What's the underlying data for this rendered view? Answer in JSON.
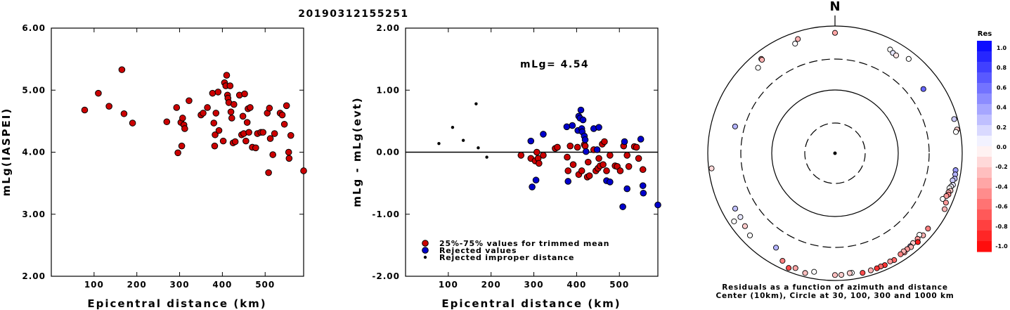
{
  "title": "20190312155251",
  "chart_data": [
    {
      "type": "scatter",
      "xlabel": "Epicentral distance (km)",
      "ylabel": "mLg(IASPEI)",
      "xlim": [
        0,
        590
      ],
      "ylim": [
        2.0,
        6.0
      ],
      "x_ticks": [
        "100",
        "200",
        "300",
        "400",
        "500"
      ],
      "y_ticks": [
        "2.00",
        "3.00",
        "4.00",
        "5.00",
        "6.00"
      ],
      "points": [
        [
          78,
          4.68
        ],
        [
          110,
          4.95
        ],
        [
          135,
          4.74
        ],
        [
          165,
          5.33
        ],
        [
          170,
          4.62
        ],
        [
          190,
          4.47
        ],
        [
          270,
          4.49
        ],
        [
          293,
          4.72
        ],
        [
          296,
          3.99
        ],
        [
          303,
          4.48
        ],
        [
          305,
          4.1
        ],
        [
          307,
          4.55
        ],
        [
          310,
          4.44
        ],
        [
          312,
          4.38
        ],
        [
          322,
          4.83
        ],
        [
          350,
          4.6
        ],
        [
          355,
          4.63
        ],
        [
          365,
          4.72
        ],
        [
          377,
          4.95
        ],
        [
          380,
          4.47
        ],
        [
          382,
          4.1
        ],
        [
          383,
          4.28
        ],
        [
          385,
          4.63
        ],
        [
          390,
          4.97
        ],
        [
          392,
          4.35
        ],
        [
          402,
          4.18
        ],
        [
          405,
          5.12
        ],
        [
          408,
          5.07
        ],
        [
          410,
          5.24
        ],
        [
          412,
          4.92
        ],
        [
          413,
          4.87
        ],
        [
          415,
          4.8
        ],
        [
          418,
          5.07
        ],
        [
          420,
          4.65
        ],
        [
          422,
          4.55
        ],
        [
          425,
          4.15
        ],
        [
          427,
          4.77
        ],
        [
          430,
          4.17
        ],
        [
          440,
          4.92
        ],
        [
          445,
          4.28
        ],
        [
          448,
          4.58
        ],
        [
          450,
          4.3
        ],
        [
          452,
          4.94
        ],
        [
          455,
          4.18
        ],
        [
          458,
          4.48
        ],
        [
          460,
          4.7
        ],
        [
          462,
          4.32
        ],
        [
          465,
          4.72
        ],
        [
          470,
          4.08
        ],
        [
          478,
          4.07
        ],
        [
          482,
          4.3
        ],
        [
          490,
          4.32
        ],
        [
          495,
          4.32
        ],
        [
          505,
          4.63
        ],
        [
          508,
          3.67
        ],
        [
          510,
          4.71
        ],
        [
          512,
          4.22
        ],
        [
          518,
          3.96
        ],
        [
          522,
          4.3
        ],
        [
          535,
          4.63
        ],
        [
          540,
          4.6
        ],
        [
          545,
          4.45
        ],
        [
          550,
          4.75
        ],
        [
          555,
          4.0
        ],
        [
          556,
          3.9
        ],
        [
          560,
          4.27
        ],
        [
          592,
          3.7
        ]
      ]
    },
    {
      "type": "scatter",
      "xlabel": "Epicentral distance (km)",
      "ylabel": "mLg - mLg(evt)",
      "xlim": [
        0,
        590
      ],
      "ylim": [
        -2.0,
        2.0
      ],
      "x_ticks": [
        "100",
        "200",
        "300",
        "400",
        "500"
      ],
      "y_ticks": [
        "-2.00",
        "-1.00",
        "0.00",
        "1.00",
        "2.00"
      ],
      "annotation": "mLg= 4.54",
      "reference_line": 0.0,
      "legend": [
        {
          "label": "25%-75% values for trimmed mean",
          "color": "#cc0000"
        },
        {
          "label": "Rejected values",
          "color": "#0000cc"
        },
        {
          "label": "Rejected improper distance",
          "color": "#000000"
        }
      ],
      "series": [
        {
          "name": "25%-75% values for trimmed mean",
          "color": "#cc0000",
          "points": [
            [
              270,
              -0.05
            ],
            [
              293,
              -0.1
            ],
            [
              303,
              -0.14
            ],
            [
              307,
              0.0
            ],
            [
              310,
              -0.1
            ],
            [
              312,
              -0.18
            ],
            [
              322,
              -0.05
            ],
            [
              350,
              0.06
            ],
            [
              355,
              0.08
            ],
            [
              378,
              -0.08
            ],
            [
              380,
              -0.3
            ],
            [
              385,
              0.1
            ],
            [
              392,
              -0.2
            ],
            [
              402,
              0.08
            ],
            [
              405,
              -0.36
            ],
            [
              412,
              -0.3
            ],
            [
              418,
              0.12
            ],
            [
              420,
              0.1
            ],
            [
              425,
              -0.4
            ],
            [
              427,
              -0.16
            ],
            [
              430,
              -0.38
            ],
            [
              440,
              0.04
            ],
            [
              445,
              -0.3
            ],
            [
              450,
              -0.26
            ],
            [
              452,
              -0.1
            ],
            [
              455,
              -0.22
            ],
            [
              460,
              0.13
            ],
            [
              462,
              -0.2
            ],
            [
              465,
              0.17
            ],
            [
              470,
              -0.3
            ],
            [
              478,
              -0.05
            ],
            [
              490,
              -0.22
            ],
            [
              495,
              -0.23
            ],
            [
              502,
              -0.3
            ],
            [
              510,
              0.1
            ],
            [
              518,
              -0.05
            ],
            [
              522,
              -0.23
            ],
            [
              535,
              0.09
            ],
            [
              540,
              0.08
            ],
            [
              545,
              -0.1
            ],
            [
              555,
              -0.28
            ]
          ]
        },
        {
          "name": "Rejected values",
          "color": "#0000cc",
          "points": [
            [
              293,
              0.18
            ],
            [
              296,
              -0.56
            ],
            [
              305,
              -0.45
            ],
            [
              322,
              0.29
            ],
            [
              377,
              0.41
            ],
            [
              380,
              -0.47
            ],
            [
              390,
              0.43
            ],
            [
              403,
              0.35
            ],
            [
              405,
              0.58
            ],
            [
              408,
              0.55
            ],
            [
              410,
              0.68
            ],
            [
              412,
              0.38
            ],
            [
              413,
              0.33
            ],
            [
              415,
              0.52
            ],
            [
              418,
              0.26
            ],
            [
              420,
              0.2
            ],
            [
              422,
              0.01
            ],
            [
              440,
              0.38
            ],
            [
              448,
              0.04
            ],
            [
              452,
              0.4
            ],
            [
              470,
              -0.46
            ],
            [
              478,
              -0.48
            ],
            [
              508,
              -0.88
            ],
            [
              512,
              0.17
            ],
            [
              518,
              -0.59
            ],
            [
              550,
              0.21
            ],
            [
              555,
              -0.54
            ],
            [
              556,
              -0.66
            ],
            [
              592,
              -0.85
            ]
          ]
        },
        {
          "name": "Rejected improper distance",
          "color": "#000000",
          "points": [
            [
              78,
              0.14
            ],
            [
              110,
              0.4
            ],
            [
              135,
              0.19
            ],
            [
              165,
              0.78
            ],
            [
              170,
              0.07
            ],
            [
              190,
              -0.08
            ]
          ]
        }
      ]
    },
    {
      "type": "scatter",
      "subtype": "polar",
      "north_label": "N",
      "caption_line1": "Residuals as a function of azimuth and distance",
      "caption_line2": "Center (10km), Circle at 30, 100, 300 and 1000 km",
      "colorbar": {
        "label": "Res",
        "range": [
          -1.0,
          1.0
        ],
        "tick_labels": [
          "1.0",
          "0.8",
          "0.6",
          "0.4",
          "0.2",
          "0.0",
          "-0.2",
          "-0.4",
          "-0.6",
          "-0.8",
          "-1.0"
        ]
      },
      "points": [
        {
          "azimuth": 0,
          "distance_km": 780,
          "residual": -0.35
        },
        {
          "azimuth": -18,
          "distance_km": 770,
          "residual": -0.3
        },
        {
          "azimuth": -20,
          "distance_km": 680,
          "residual": 0.02
        },
        {
          "azimuth": -38,
          "distance_km": 760,
          "residual": -0.35
        },
        {
          "azimuth": -38,
          "distance_km": 730,
          "residual": -0.3
        },
        {
          "azimuth": -42,
          "distance_km": 640,
          "residual": 0.0
        },
        {
          "azimuth": -75,
          "distance_km": 420,
          "residual": 0.3
        },
        {
          "azimuth": -97,
          "distance_km": 900,
          "residual": -0.15
        },
        {
          "azimuth": -119,
          "distance_km": 620,
          "residual": 0.25
        },
        {
          "azimuth": -124,
          "distance_km": 820,
          "residual": 0.0
        },
        {
          "azimuth": -124,
          "distance_km": 620,
          "residual": 0.1
        },
        {
          "azimuth": -129,
          "distance_km": 660,
          "residual": -0.2
        },
        {
          "azimuth": -134,
          "distance_km": 720,
          "residual": 0.0
        },
        {
          "azimuth": -148,
          "distance_km": 560,
          "residual": 0.3
        },
        {
          "azimuth": -154,
          "distance_km": 760,
          "residual": -0.5
        },
        {
          "azimuth": -158,
          "distance_km": 880,
          "residual": -0.7
        },
        {
          "azimuth": -161,
          "distance_km": 810,
          "residual": -0.35
        },
        {
          "azimuth": -166,
          "distance_km": 870,
          "residual": -0.25
        },
        {
          "azimuth": -170,
          "distance_km": 780,
          "residual": 0.0
        },
        {
          "azimuth": -180,
          "distance_km": 820,
          "residual": -0.25
        },
        {
          "azimuth": 28,
          "distance_km": 700,
          "residual": 0.0
        },
        {
          "azimuth": 30,
          "distance_km": 660,
          "residual": 0.1
        },
        {
          "azimuth": 32,
          "distance_km": 650,
          "residual": -0.1
        },
        {
          "azimuth": 38,
          "distance_km": 760,
          "residual": 0.0
        },
        {
          "azimuth": 54,
          "distance_km": 520,
          "residual": 0.6
        },
        {
          "azimuth": 74,
          "distance_km": 890,
          "residual": 0.2
        },
        {
          "azimuth": 79,
          "distance_km": 900,
          "residual": -0.2
        },
        {
          "azimuth": 80,
          "distance_km": 850,
          "residual": 0.0
        },
        {
          "azimuth": 98,
          "distance_km": 820,
          "residual": 0.4
        },
        {
          "azimuth": 100,
          "distance_km": 830,
          "residual": 0.3
        },
        {
          "azimuth": 102,
          "distance_km": 840,
          "residual": 0.25
        },
        {
          "azimuth": 103,
          "distance_km": 790,
          "residual": 0.2
        },
        {
          "azimuth": 105,
          "distance_km": 830,
          "residual": 0.1
        },
        {
          "azimuth": 106,
          "distance_km": 790,
          "residual": 0.05
        },
        {
          "azimuth": 107,
          "distance_km": 760,
          "residual": 0.0
        },
        {
          "azimuth": 108,
          "distance_km": 810,
          "residual": -0.2
        },
        {
          "azimuth": 109,
          "distance_km": 770,
          "residual": -0.3
        },
        {
          "azimuth": 110,
          "distance_km": 790,
          "residual": -0.5
        },
        {
          "azimuth": 111,
          "distance_km": 750,
          "residual": -0.4
        },
        {
          "azimuth": 113,
          "distance_km": 690,
          "residual": 0.0
        },
        {
          "azimuth": 114,
          "distance_km": 810,
          "residual": -0.4
        },
        {
          "azimuth": 117,
          "distance_km": 860,
          "residual": -0.3
        },
        {
          "azimuth": 129,
          "distance_km": 760,
          "residual": -0.5
        },
        {
          "azimuth": 133,
          "distance_km": 780,
          "residual": -0.3
        },
        {
          "azimuth": 134,
          "distance_km": 700,
          "residual": 0.0
        },
        {
          "azimuth": 136,
          "distance_km": 740,
          "residual": -0.4
        },
        {
          "azimuth": 137,
          "distance_km": 810,
          "residual": -0.9
        },
        {
          "azimuth": 139,
          "distance_km": 740,
          "residual": -0.2
        },
        {
          "azimuth": 141,
          "distance_km": 760,
          "residual": 0.3
        },
        {
          "azimuth": 141,
          "distance_km": 790,
          "residual": -0.3
        },
        {
          "azimuth": 143,
          "distance_km": 770,
          "residual": -0.4
        },
        {
          "azimuth": 145,
          "distance_km": 800,
          "residual": -0.4
        },
        {
          "azimuth": 145,
          "distance_km": 760,
          "residual": -0.3
        },
        {
          "azimuth": 147,
          "distance_km": 780,
          "residual": -0.5
        },
        {
          "azimuth": 151,
          "distance_km": 830,
          "residual": -0.6
        },
        {
          "azimuth": 153,
          "distance_km": 810,
          "residual": -0.4
        },
        {
          "azimuth": 156,
          "distance_km": 840,
          "residual": -0.8
        },
        {
          "azimuth": 158,
          "distance_km": 830,
          "residual": -0.6
        },
        {
          "azimuth": 160,
          "distance_km": 840,
          "residual": -0.8
        },
        {
          "azimuth": 163,
          "distance_km": 840,
          "residual": -0.3
        },
        {
          "azimuth": 167,
          "distance_km": 850,
          "residual": -0.7
        },
        {
          "azimuth": 172,
          "distance_km": 790,
          "residual": 0.0
        },
        {
          "azimuth": 173,
          "distance_km": 790,
          "residual": -0.2
        },
        {
          "azimuth": 177,
          "distance_km": 820,
          "residual": -0.2
        }
      ]
    }
  ]
}
